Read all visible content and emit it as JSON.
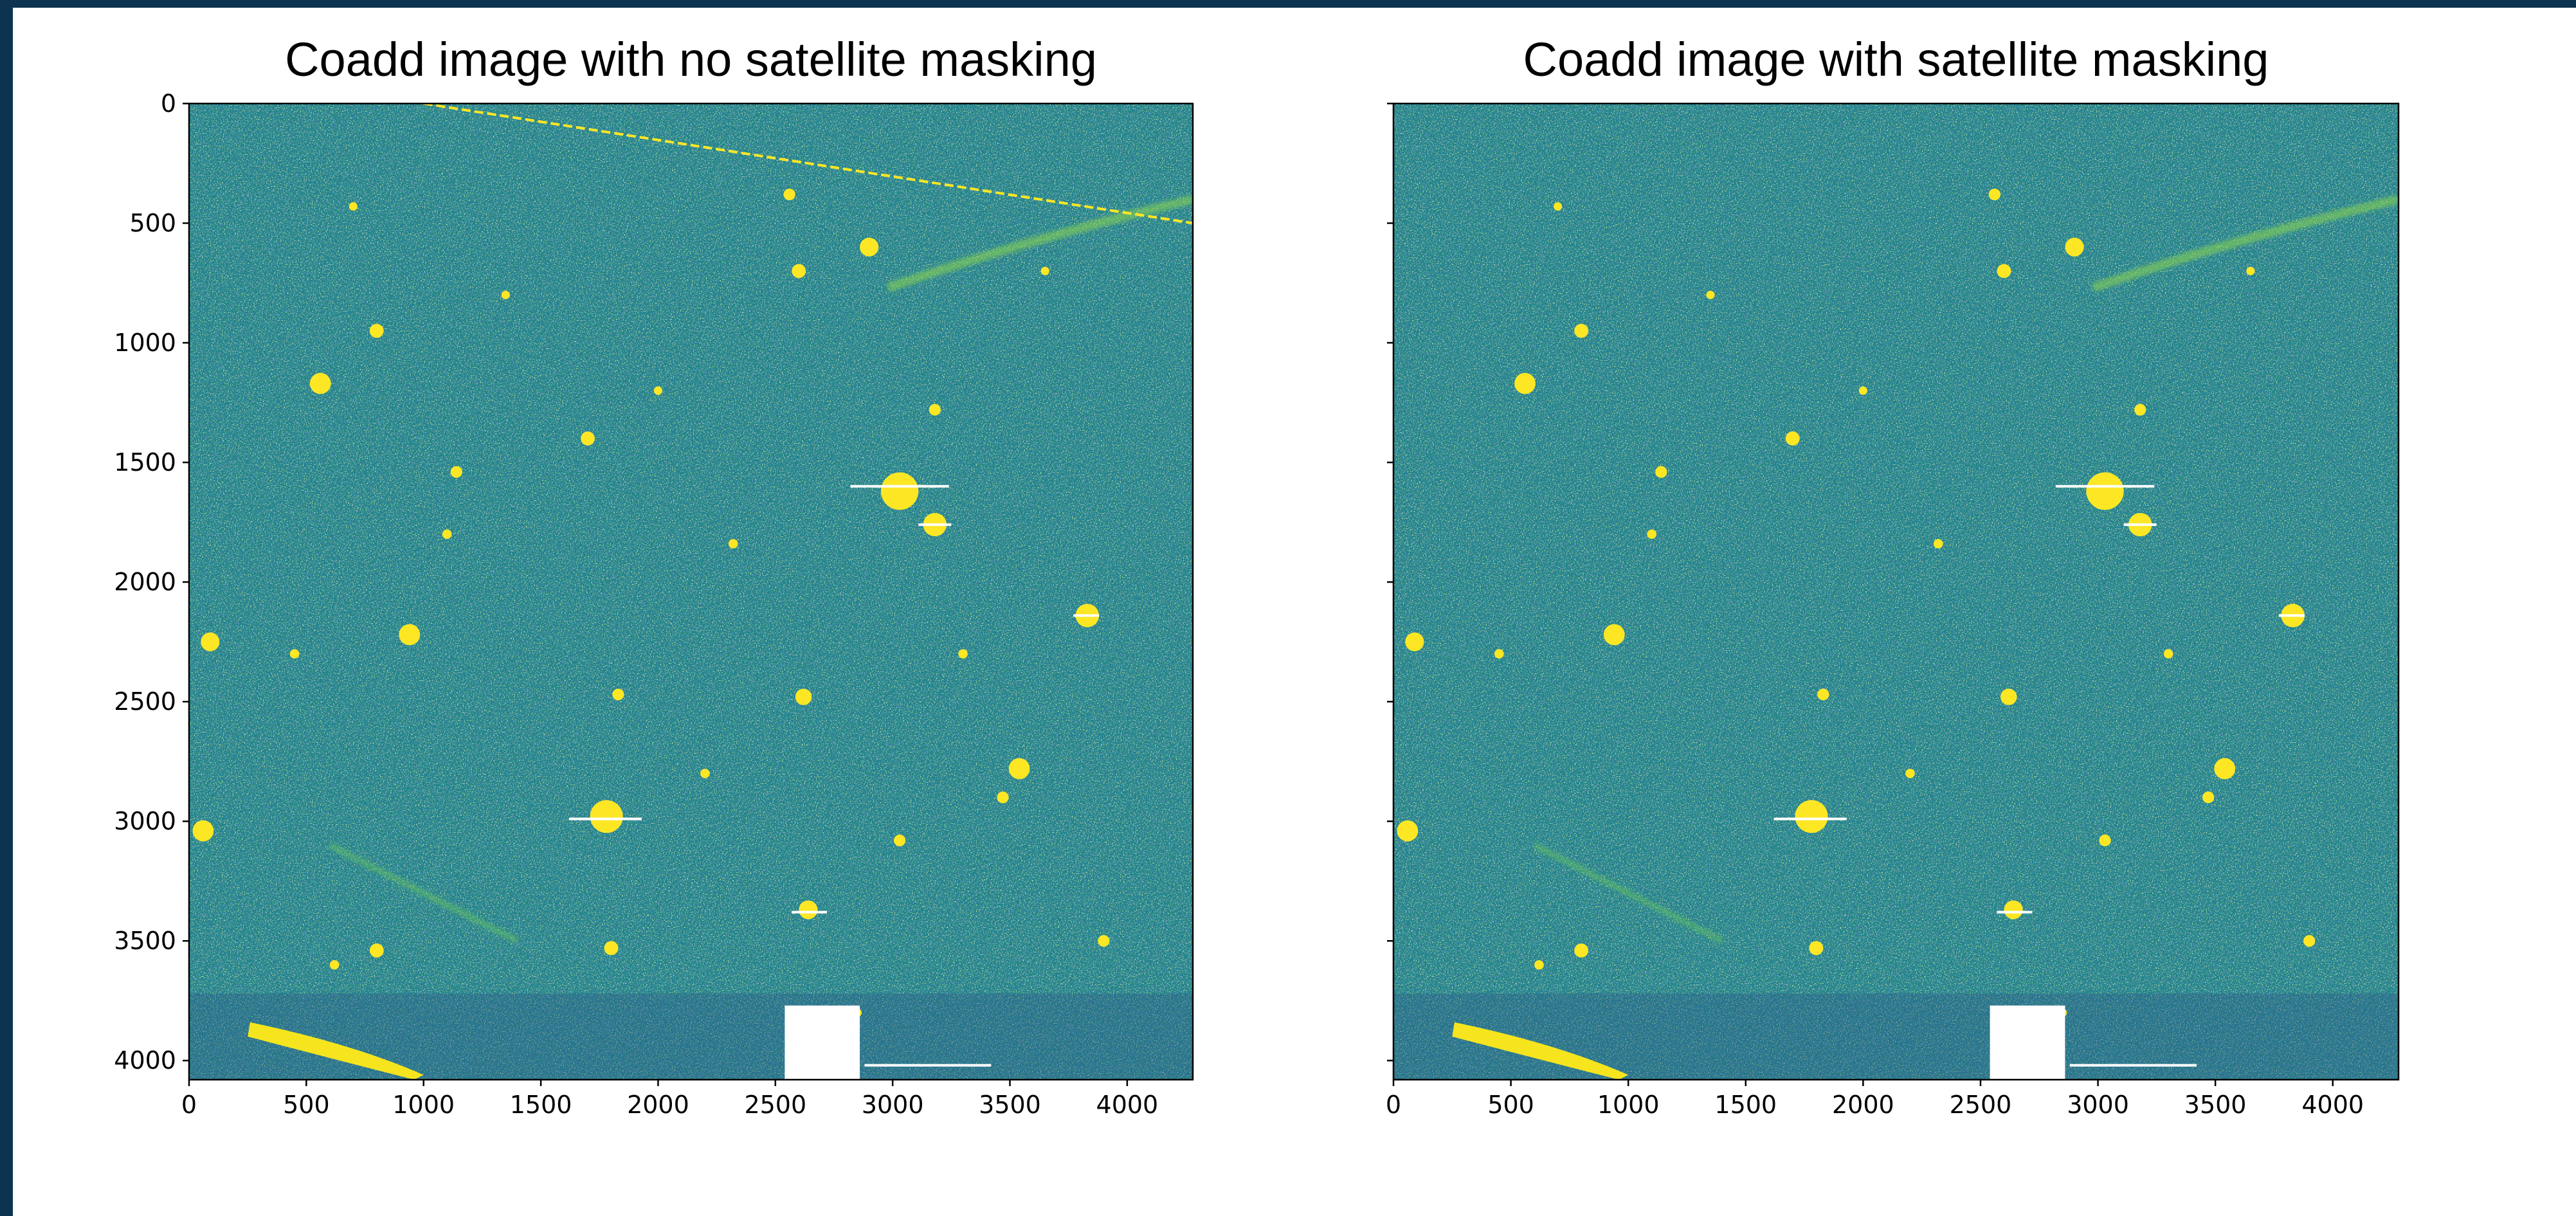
{
  "chart_data": [
    {
      "type": "image",
      "title": "Coadd image with no satellite masking",
      "xlim": [
        0,
        4280
      ],
      "ylim": [
        4080,
        0
      ],
      "xticks": [
        0,
        500,
        1000,
        1500,
        2000,
        2500,
        3000,
        3500,
        4000
      ],
      "yticks": [
        0,
        500,
        1000,
        1500,
        2000,
        2500,
        3000,
        3500,
        4000
      ],
      "satellite_trail": true
    },
    {
      "type": "image",
      "title": "Coadd image with satellite masking",
      "xlim": [
        0,
        4280
      ],
      "ylim": [
        4080,
        0
      ],
      "xticks": [
        0,
        500,
        1000,
        1500,
        2000,
        2500,
        3000,
        3500,
        4000
      ],
      "yticks": [
        0,
        500,
        1000,
        1500,
        2000,
        2500,
        3000,
        3500,
        4000
      ],
      "ytick_labels": false,
      "satellite_trail": false
    }
  ]
}
